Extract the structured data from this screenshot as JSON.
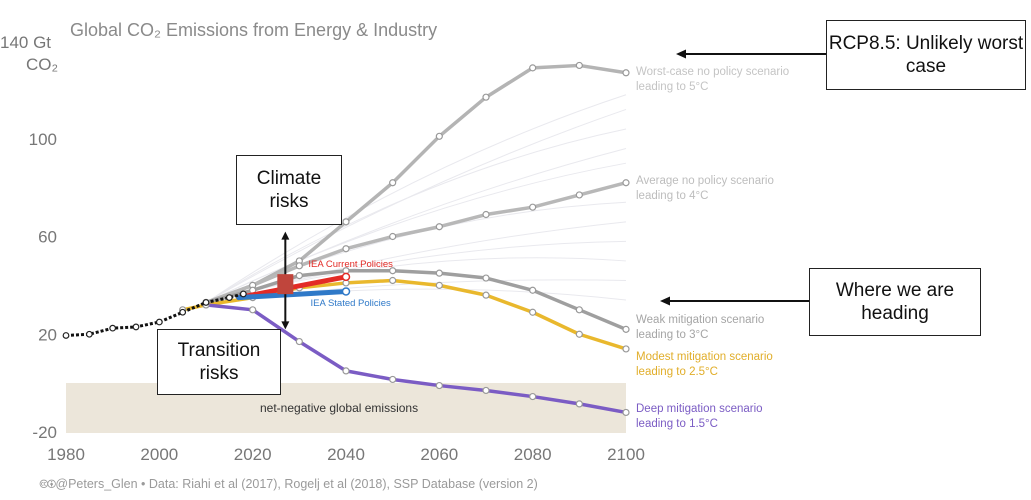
{
  "chart_data": {
    "type": "line",
    "title": "Global CO₂ Emissions from Energy & Industry",
    "ylabel_line1": "140 Gt",
    "ylabel_line2": "CO₂",
    "xlim": [
      1980,
      2100
    ],
    "ylim": [
      -20,
      140
    ],
    "x_ticks": [
      1980,
      2000,
      2020,
      2040,
      2060,
      2080,
      2100
    ],
    "y_ticks": [
      -20,
      20,
      60,
      100
    ],
    "historical": {
      "x": [
        1980,
        1985,
        1990,
        1995,
        2000,
        2005,
        2010,
        2015,
        2018
      ],
      "y": [
        19.5,
        20,
        22.5,
        23,
        25,
        29,
        33,
        35,
        36.5
      ]
    },
    "series": [
      {
        "label": "Worst-case no policy scenario leading to 5°C",
        "color": "#b4b4b4",
        "x": [
          2010,
          2020,
          2030,
          2040,
          2050,
          2060,
          2070,
          2080,
          2090,
          2100
        ],
        "y": [
          33,
          40,
          50,
          66,
          82,
          101,
          117,
          129,
          130,
          127
        ]
      },
      {
        "label": "Average no policy scenario leading to 4°C",
        "color": "#b8b8b8",
        "x": [
          2010,
          2020,
          2030,
          2040,
          2050,
          2060,
          2070,
          2080,
          2090,
          2100
        ],
        "y": [
          33,
          40,
          48,
          55,
          60,
          64,
          69,
          72,
          77,
          82
        ]
      },
      {
        "label": "Weak mitigation scenario leading to 3°C",
        "color": "#9f9f9f",
        "x": [
          2010,
          2020,
          2030,
          2040,
          2050,
          2060,
          2070,
          2080,
          2090,
          2100
        ],
        "y": [
          33,
          38,
          44,
          46,
          46,
          45,
          43,
          38,
          30,
          22
        ]
      },
      {
        "label": "Modest mitigation scenario leading to 2.5°C",
        "color": "#e9b82d",
        "x": [
          2005,
          2010,
          2020,
          2030,
          2040,
          2050,
          2060,
          2070,
          2080,
          2090,
          2100
        ],
        "y": [
          30,
          32,
          35,
          39,
          41,
          42,
          40,
          36,
          29,
          20,
          14
        ]
      },
      {
        "label": "Deep mitigation scenario leading to 1.5°C",
        "color": "#7b5cc4",
        "x": [
          2010,
          2020,
          2030,
          2040,
          2050,
          2060,
          2070,
          2080,
          2090,
          2100
        ],
        "y": [
          32,
          30,
          17,
          5,
          1.5,
          -1,
          -3,
          -5.5,
          -8.5,
          -12
        ]
      }
    ],
    "iea": [
      {
        "label": "IEA Current Policies",
        "color": "#e32b26",
        "x": [
          2017,
          2040
        ],
        "y": [
          35,
          43.5
        ]
      },
      {
        "label": "IEA Stated Policies",
        "color": "#2f79c8",
        "x": [
          2017,
          2040
        ],
        "y": [
          35,
          37.5
        ]
      }
    ],
    "region_label": "net-negative global emissions",
    "credit": "🅭🅯@Peters_Glen  •  Data: Riahi et al (2017), Rogelj et al (2018), SSP Database (version 2)"
  },
  "callouts": {
    "rcp": "RCP8.5: Unlikely worst case",
    "where": "Where we are heading",
    "climate": "Climate risks",
    "transition": "Transition risks"
  }
}
